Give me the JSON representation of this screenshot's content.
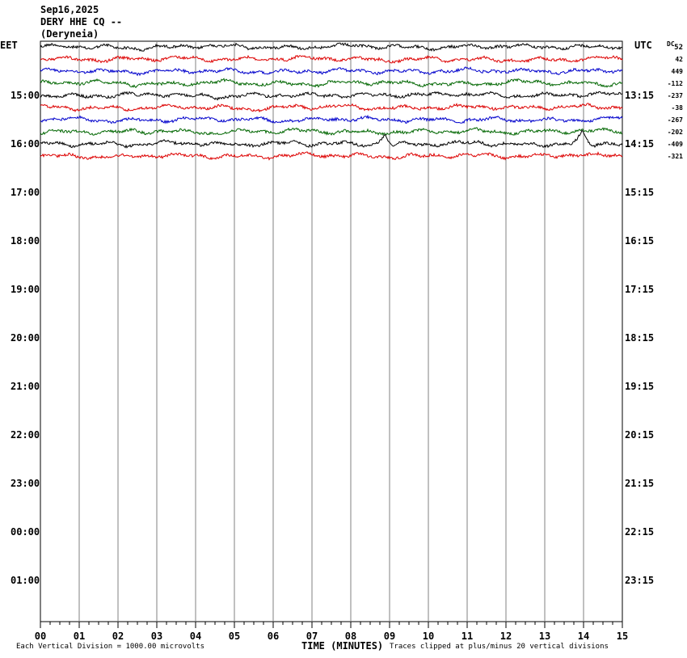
{
  "header": {
    "date": "Sep16,2025",
    "station": "DERY HHE CQ --",
    "place": "(Deryneia)"
  },
  "left_zone_label": "EET",
  "right_zone_label": "UTC",
  "dc_label": "DC",
  "colors": {
    "trace_cycle": [
      "#000000",
      "#dd0000",
      "#0000cc",
      "#006600"
    ],
    "grid": "#808080",
    "frame": "#000000"
  },
  "chart_data": {
    "type": "line",
    "subtype": "helicorder",
    "x_unit": "minutes",
    "xlim": [
      0,
      15
    ],
    "x_ticks": [
      "00",
      "01",
      "02",
      "03",
      "04",
      "05",
      "06",
      "07",
      "08",
      "09",
      "10",
      "11",
      "12",
      "13",
      "14",
      "15"
    ],
    "xlabel": "TIME (MINUTES)",
    "rows_per_hour": 4,
    "left_hour_labels": [
      "15:00",
      "16:00",
      "17:00",
      "18:00",
      "19:00",
      "20:00",
      "21:00",
      "22:00",
      "23:00",
      "00:00",
      "01:00"
    ],
    "right_hour_labels": [
      "13:15",
      "14:15",
      "15:15",
      "16:15",
      "17:15",
      "18:15",
      "19:15",
      "20:15",
      "21:15",
      "22:15",
      "23:15"
    ],
    "first_row_offset_label": "52",
    "row_offsets": [
      "42",
      "449",
      "-112",
      "-237",
      "-38",
      "-267",
      "-202",
      "-409",
      "-321"
    ],
    "traces_recorded": 10,
    "trace_events": [
      {
        "row": 8,
        "minute": 8.9,
        "amplitude": 1.0
      },
      {
        "row": 8,
        "minute": 14.0,
        "amplitude": 1.0
      }
    ],
    "footer_left": "Each Vertical Division = 1000.00 microvolts",
    "footer_right": "Traces clipped at plus/minus 20 vertical divisions"
  }
}
